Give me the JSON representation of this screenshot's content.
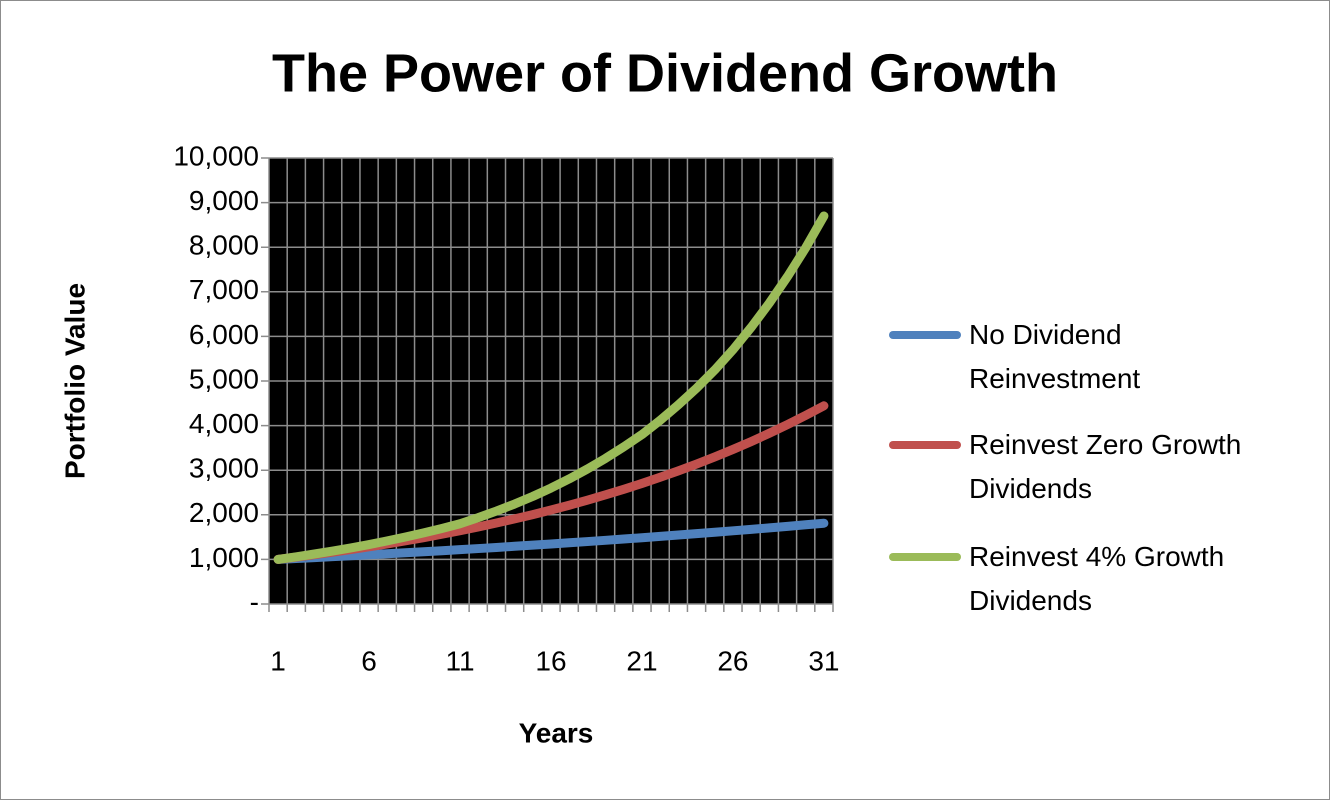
{
  "chart_data": {
    "type": "line",
    "title": "The Power of Dividend Growth",
    "x_label": "Years",
    "y_label": "Portfolio Value",
    "categories": [
      "1",
      null,
      null,
      null,
      null,
      "6",
      null,
      null,
      null,
      null,
      "11",
      null,
      null,
      null,
      null,
      "16",
      null,
      null,
      null,
      null,
      "21",
      null,
      null,
      null,
      null,
      "26",
      null,
      null,
      null,
      null,
      "31"
    ],
    "series": [
      {
        "name": "No Dividend Reinvestment",
        "color": "#4f81bd",
        "values": [
          1000,
          1020,
          1040,
          1061,
          1082,
          1104,
          1126,
          1149,
          1172,
          1195,
          1219,
          1243,
          1268,
          1294,
          1319,
          1346,
          1373,
          1400,
          1428,
          1457,
          1486,
          1516,
          1546,
          1577,
          1608,
          1641,
          1673,
          1707,
          1741,
          1776,
          1811
        ]
      },
      {
        "name": "Reinvest Zero Growth Dividends",
        "color": "#c0504d",
        "values": [
          1000,
          1051,
          1105,
          1161,
          1220,
          1282,
          1347,
          1416,
          1488,
          1564,
          1644,
          1728,
          1816,
          1908,
          2005,
          2108,
          2215,
          2328,
          2447,
          2572,
          2703,
          2841,
          2985,
          3138,
          3298,
          3466,
          3642,
          3828,
          4023,
          4229,
          4444
        ]
      },
      {
        "name": "Reinvest 4% Growth Dividends",
        "color": "#9bbb59",
        "values": [
          1000,
          1059,
          1121,
          1188,
          1258,
          1332,
          1415,
          1502,
          1595,
          1694,
          1800,
          1937,
          2084,
          2242,
          2413,
          2600,
          2805,
          3027,
          3266,
          3524,
          3800,
          4119,
          4465,
          4840,
          5247,
          5700,
          6202,
          6747,
          7341,
          7987,
          8700
        ]
      }
    ],
    "ylim": [
      0,
      10000
    ],
    "yticks": [
      {
        "value": 0,
        "label": "-"
      },
      {
        "value": 1000,
        "label": "1,000"
      },
      {
        "value": 2000,
        "label": "2,000"
      },
      {
        "value": 3000,
        "label": "3,000"
      },
      {
        "value": 4000,
        "label": "4,000"
      },
      {
        "value": 5000,
        "label": "5,000"
      },
      {
        "value": 6000,
        "label": "6,000"
      },
      {
        "value": 7000,
        "label": "7,000"
      },
      {
        "value": 8000,
        "label": "8,000"
      },
      {
        "value": 9000,
        "label": "9,000"
      },
      {
        "value": 10000,
        "label": "10,000"
      }
    ],
    "grid": true,
    "plot_background": "#000000",
    "legend": "right"
  }
}
